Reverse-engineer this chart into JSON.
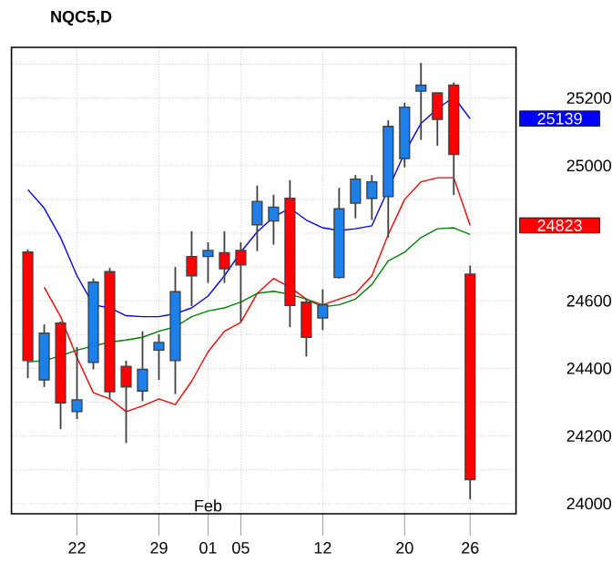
{
  "chart_data": {
    "type": "candlestick",
    "title": "NQC5,D",
    "categories": [
      null,
      null,
      null,
      "22",
      null,
      null,
      null,
      null,
      "29",
      null,
      null,
      "01",
      null,
      "05",
      null,
      null,
      null,
      null,
      "12",
      null,
      null,
      null,
      null,
      "20",
      null,
      null,
      null,
      "26"
    ],
    "ohlc": [
      [
        24744,
        24752,
        24371,
        24423
      ],
      [
        24366,
        24530,
        24345,
        24504
      ],
      [
        24534,
        24539,
        24220,
        24298
      ],
      [
        24272,
        24463,
        24250,
        24307
      ],
      [
        24418,
        24666,
        24397,
        24655
      ],
      [
        24686,
        24697,
        24310,
        24331
      ],
      [
        24406,
        24423,
        24179,
        24345
      ],
      [
        24333,
        24510,
        24303,
        24397
      ],
      [
        24454,
        24501,
        24366,
        24477
      ],
      [
        24423,
        24700,
        24324,
        24627
      ],
      [
        24731,
        24806,
        24584,
        24674
      ],
      [
        24731,
        24773,
        24653,
        24749
      ],
      [
        24742,
        24806,
        24653,
        24695
      ],
      [
        24749,
        24773,
        24539,
        24706
      ],
      [
        24825,
        24941,
        24747,
        24894
      ],
      [
        24836,
        24914,
        24766,
        24877
      ],
      [
        24903,
        24957,
        24522,
        24586
      ],
      [
        24596,
        24605,
        24435,
        24492
      ],
      [
        24549,
        24634,
        24513,
        24588
      ],
      [
        24669,
        24934,
        24666,
        24872
      ],
      [
        24889,
        24972,
        24844,
        24960
      ],
      [
        24903,
        24972,
        24839,
        24952
      ],
      [
        24908,
        25134,
        24787,
        25116
      ],
      [
        25021,
        25186,
        24995,
        25173
      ],
      [
        25220,
        25304,
        25076,
        25238
      ],
      [
        25215,
        25215,
        25059,
        25137
      ],
      [
        25238,
        25246,
        24913,
        25033
      ],
      [
        24679,
        24704,
        24012,
        24071
      ]
    ],
    "series": [
      {
        "type": "line",
        "color": "#0000ff",
        "values": [
          24929,
          24874,
          24787,
          24674,
          24588,
          24579,
          24556,
          24553,
          24553,
          24562,
          24579,
          24614,
          24674,
          24744,
          24804,
          24848,
          24874,
          24839,
          24816,
          24808,
          24813,
          24822,
          null,
          25038,
          25125,
          25168,
          25203,
          25139
        ]
      },
      {
        "type": "line",
        "color": "#ff0000",
        "values": [
          null,
          24640,
          24553,
          24432,
          24328,
          24310,
          24272,
          24289,
          24310,
          24293,
          24362,
          24449,
          24510,
          24536,
          24622,
          24666,
          24640,
          24605,
          24588,
          24605,
          24622,
          24674,
          24796,
          24900,
          24952,
          24964,
          24964,
          24823
        ]
      },
      {
        "type": "line",
        "color": "#008000",
        "values": [
          24419,
          24423,
          24437,
          24454,
          24466,
          24478,
          24484,
          24492,
          24510,
          24523,
          24553,
          24570,
          24579,
          24596,
          24622,
          24628,
          24619,
          24605,
          24582,
          24588,
          24605,
          24648,
          24718,
          24744,
          24787,
          24813,
          24816,
          24796
        ]
      }
    ],
    "ylim": [
      23970,
      25350
    ],
    "yticks": [
      24000,
      {
        "value": 24100,
        "label": null
      },
      24200,
      {
        "value": 24300,
        "label": null
      },
      24400,
      {
        "value": 24500,
        "label": null
      },
      24600,
      {
        "value": 24700,
        "label": null
      },
      {
        "value": 24800,
        "label": null
      },
      {
        "value": 24900,
        "label": null
      },
      25000,
      {
        "value": 25100,
        "label": null
      },
      25200,
      {
        "value": 25300,
        "label": null
      }
    ],
    "grid": true,
    "annotations": [
      "Feb",
      "25139",
      "24823"
    ]
  }
}
